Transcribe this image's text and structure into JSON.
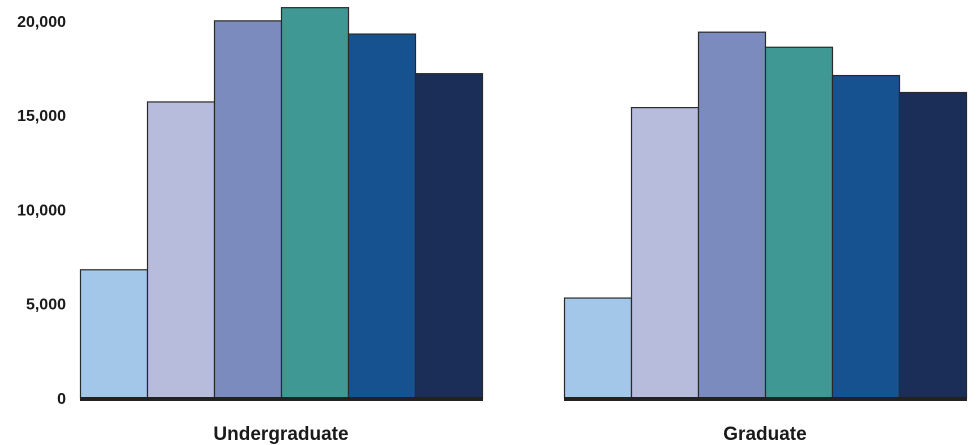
{
  "chart_data": {
    "type": "bar",
    "title": "",
    "xlabel": "",
    "ylabel": "",
    "ylim": [
      0,
      21000
    ],
    "yticks": [
      0,
      5000,
      10000,
      15000,
      20000
    ],
    "ytick_labels": [
      "0",
      "5,000",
      "10,000",
      "15,000",
      "20,000"
    ],
    "grid": false,
    "legend": "none",
    "categories": [
      "Undergraduate",
      "Graduate"
    ],
    "series": [
      {
        "color": "#a3c7e9",
        "values": [
          6800,
          5300
        ]
      },
      {
        "color": "#b7bbdc",
        "values": [
          15700,
          15400
        ]
      },
      {
        "color": "#7b8bbd",
        "values": [
          20000,
          19400
        ]
      },
      {
        "color": "#3f9894",
        "values": [
          20700,
          18600
        ]
      },
      {
        "color": "#165190",
        "values": [
          19300,
          17100
        ]
      },
      {
        "color": "#1b2e57",
        "values": [
          17200,
          16200
        ]
      }
    ]
  }
}
